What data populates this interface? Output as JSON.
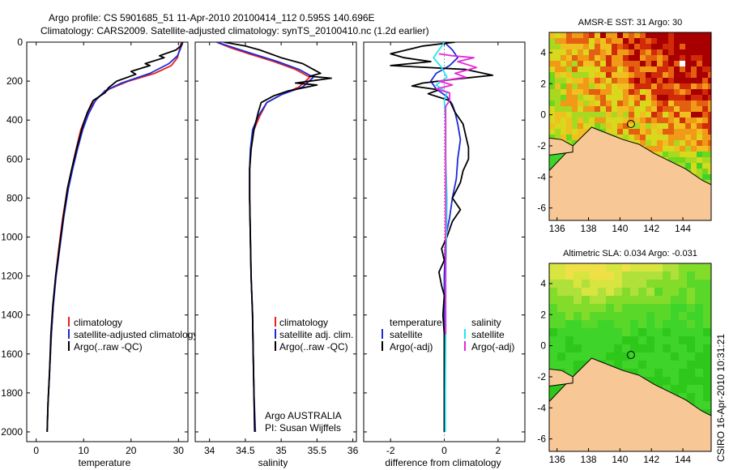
{
  "header": {
    "line1": "Argo profile: CS 5901685_51 11-Apr-2010 20100414_112 0.595S 140.696E",
    "line2": "Climatology: CARS2009. Satellite-adjusted climatology: synTS_20100410.nc (1.2d earlier)"
  },
  "side_stamp": "CSIRO 16-Apr-2010 10:31:21",
  "colors": {
    "climatology": "#e8201c",
    "satellite": "#1c2ad8",
    "argo": "#000000",
    "sat_salinity": "#22e6ee",
    "argo_salinity": "#e62ad8",
    "land": "#f7c896",
    "map_green": "#3fd42a",
    "map_dark_red": "#a80000"
  },
  "chart_data": [
    {
      "type": "line",
      "name": "temperature-profile",
      "xlabel": "temperature",
      "ylim": [
        2050,
        0
      ],
      "xlim": [
        -2,
        32
      ],
      "xticks": [
        0,
        10,
        20,
        30
      ],
      "yticks": [
        0,
        200,
        400,
        600,
        800,
        1000,
        1200,
        1400,
        1600,
        1800,
        2000
      ],
      "legend": [
        "climatology",
        "satellite-adjusted climatology",
        "Argo(..raw -QC)"
      ],
      "series": [
        {
          "name": "climatology",
          "color": "#e8201c",
          "points": [
            [
              30.6,
              0
            ],
            [
              30.2,
              40
            ],
            [
              29.8,
              80
            ],
            [
              28.5,
              120
            ],
            [
              25,
              160
            ],
            [
              19.5,
              200
            ],
            [
              15.5,
              240
            ],
            [
              13.2,
              280
            ],
            [
              11.8,
              320
            ],
            [
              10.5,
              380
            ],
            [
              9.4,
              450
            ],
            [
              8.4,
              550
            ],
            [
              7.5,
              650
            ],
            [
              6.6,
              750
            ],
            [
              5.6,
              900
            ],
            [
              4.8,
              1050
            ],
            [
              4.1,
              1200
            ],
            [
              3.6,
              1350
            ],
            [
              3.2,
              1500
            ],
            [
              2.8,
              1700
            ],
            [
              2.5,
              1850
            ],
            [
              2.3,
              2000
            ]
          ]
        },
        {
          "name": "satellite",
          "color": "#1c2ad8",
          "points": [
            [
              30.8,
              0
            ],
            [
              30.5,
              30
            ],
            [
              29.8,
              70
            ],
            [
              28,
              110
            ],
            [
              24,
              160
            ],
            [
              18,
              210
            ],
            [
              14.5,
              250
            ],
            [
              12.5,
              300
            ],
            [
              11,
              370
            ],
            [
              9.8,
              450
            ],
            [
              8.7,
              550
            ],
            [
              7.7,
              650
            ],
            [
              6.8,
              750
            ],
            [
              5.8,
              900
            ],
            [
              5,
              1050
            ],
            [
              4.2,
              1200
            ],
            [
              3.6,
              1350
            ],
            [
              3.2,
              1500
            ],
            [
              2.8,
              1700
            ],
            [
              2.5,
              1850
            ],
            [
              2.3,
              2000
            ]
          ]
        },
        {
          "name": "argo",
          "color": "#000000",
          "points": [
            [
              30.9,
              0
            ],
            [
              30.7,
              15
            ],
            [
              29.5,
              40
            ],
            [
              26,
              70
            ],
            [
              27,
              80
            ],
            [
              23,
              110
            ],
            [
              24,
              120
            ],
            [
              20,
              150
            ],
            [
              21,
              165
            ],
            [
              17,
              200
            ],
            [
              15.2,
              235
            ],
            [
              14.5,
              260
            ],
            [
              12,
              300
            ],
            [
              10.8,
              360
            ],
            [
              9.8,
              430
            ],
            [
              8.6,
              540
            ],
            [
              7.5,
              650
            ],
            [
              6.6,
              750
            ],
            [
              5.7,
              900
            ],
            [
              4.9,
              1050
            ],
            [
              4.1,
              1200
            ],
            [
              3.5,
              1350
            ],
            [
              3.1,
              1500
            ],
            [
              2.8,
              1700
            ],
            [
              2.5,
              1850
            ],
            [
              2.3,
              2000
            ]
          ]
        }
      ]
    },
    {
      "type": "line",
      "name": "salinity-profile",
      "xlabel": "salinity",
      "ylim": [
        2050,
        0
      ],
      "xlim": [
        33.8,
        36.05
      ],
      "xticks": [
        34,
        34.5,
        35,
        35.5,
        36
      ],
      "legend": [
        "climatology",
        "satellite adj. clim.",
        "Argo(..raw -QC)"
      ],
      "annotation": [
        "Argo AUSTRALIA",
        "PI: Susan Wijffels"
      ],
      "series": [
        {
          "name": "climatology",
          "color": "#e8201c",
          "points": [
            [
              34.1,
              0
            ],
            [
              34.3,
              30
            ],
            [
              34.55,
              60
            ],
            [
              34.9,
              100
            ],
            [
              35.2,
              140
            ],
            [
              35.4,
              180
            ],
            [
              35.25,
              230
            ],
            [
              35.0,
              270
            ],
            [
              34.8,
              310
            ],
            [
              34.7,
              380
            ],
            [
              34.62,
              450
            ],
            [
              34.58,
              550
            ],
            [
              34.56,
              650
            ],
            [
              34.56,
              800
            ],
            [
              34.57,
              1000
            ],
            [
              34.58,
              1200
            ],
            [
              34.6,
              1400
            ],
            [
              34.61,
              1600
            ],
            [
              34.62,
              1800
            ],
            [
              34.63,
              2000
            ]
          ]
        },
        {
          "name": "satellite",
          "color": "#1c2ad8",
          "points": [
            [
              34.1,
              0
            ],
            [
              34.35,
              30
            ],
            [
              34.6,
              60
            ],
            [
              34.95,
              100
            ],
            [
              35.25,
              140
            ],
            [
              35.45,
              180
            ],
            [
              35.3,
              230
            ],
            [
              35.0,
              270
            ],
            [
              34.8,
              310
            ],
            [
              34.68,
              380
            ],
            [
              34.6,
              450
            ],
            [
              34.57,
              550
            ],
            [
              34.56,
              650
            ],
            [
              34.56,
              800
            ],
            [
              34.57,
              1000
            ],
            [
              34.58,
              1200
            ],
            [
              34.6,
              1400
            ],
            [
              34.61,
              1600
            ],
            [
              34.62,
              1800
            ],
            [
              34.64,
              2000
            ]
          ]
        },
        {
          "name": "argo",
          "color": "#000000",
          "points": [
            [
              34.2,
              0
            ],
            [
              34.5,
              20
            ],
            [
              34.7,
              40
            ],
            [
              35.0,
              80
            ],
            [
              35.3,
              110
            ],
            [
              35.45,
              140
            ],
            [
              35.55,
              160
            ],
            [
              35.4,
              175
            ],
            [
              35.7,
              185
            ],
            [
              35.2,
              210
            ],
            [
              35.5,
              220
            ],
            [
              35.1,
              250
            ],
            [
              34.9,
              275
            ],
            [
              34.72,
              310
            ],
            [
              34.68,
              360
            ],
            [
              34.62,
              450
            ],
            [
              34.58,
              550
            ],
            [
              34.56,
              650
            ],
            [
              34.56,
              800
            ],
            [
              34.57,
              1000
            ],
            [
              34.58,
              1200
            ],
            [
              34.6,
              1400
            ],
            [
              34.61,
              1600
            ],
            [
              34.62,
              1800
            ],
            [
              34.63,
              2000
            ]
          ]
        }
      ]
    },
    {
      "type": "line",
      "name": "difference-profile",
      "xlabel": "difference from climatology",
      "ylim": [
        2050,
        0
      ],
      "xlim": [
        -3,
        3
      ],
      "xticks": [
        -2,
        0,
        2
      ],
      "legend_left_title": "temperature",
      "legend_left": [
        "satellite",
        "Argo(-adj)"
      ],
      "legend_right_title": "salinity",
      "legend_right": [
        "satellite",
        "Argo(-adj)"
      ],
      "series": [
        {
          "name": "temp-satellite",
          "color": "#1c2ad8",
          "points": [
            [
              0,
              0
            ],
            [
              0.3,
              40
            ],
            [
              0.5,
              80
            ],
            [
              0.2,
              120
            ],
            [
              -0.3,
              160
            ],
            [
              -0.5,
              200
            ],
            [
              -0.3,
              240
            ],
            [
              0.1,
              280
            ],
            [
              0.3,
              320
            ],
            [
              0.4,
              360
            ],
            [
              0.5,
              420
            ],
            [
              0.6,
              500
            ],
            [
              0.5,
              600
            ],
            [
              0.45,
              700
            ],
            [
              0.3,
              800
            ],
            [
              0.2,
              900
            ],
            [
              0.05,
              1000
            ],
            [
              0,
              1200
            ],
            [
              0,
              1500
            ],
            [
              0,
              2000
            ]
          ]
        },
        {
          "name": "temp-argo",
          "color": "#000000",
          "points": [
            [
              0.4,
              0
            ],
            [
              -0.8,
              20
            ],
            [
              -2.0,
              60
            ],
            [
              -1.5,
              80
            ],
            [
              -0.5,
              100
            ],
            [
              -2.0,
              120
            ],
            [
              0.8,
              140
            ],
            [
              1.8,
              170
            ],
            [
              0.4,
              190
            ],
            [
              -0.8,
              210
            ],
            [
              -1.2,
              225
            ],
            [
              -0.2,
              245
            ],
            [
              -0.6,
              265
            ],
            [
              0.2,
              300
            ],
            [
              0.4,
              360
            ],
            [
              0.7,
              420
            ],
            [
              0.8,
              480
            ],
            [
              0.9,
              540
            ],
            [
              0.9,
              600
            ],
            [
              0.7,
              660
            ],
            [
              0.6,
              720
            ],
            [
              0.3,
              800
            ],
            [
              0.6,
              860
            ],
            [
              0.3,
              920
            ],
            [
              0.1,
              1000
            ],
            [
              -0.1,
              1060
            ],
            [
              0,
              1120
            ],
            [
              -0.2,
              1180
            ],
            [
              -0.1,
              1250
            ],
            [
              0,
              1300
            ],
            [
              -0.05,
              1400
            ],
            [
              0,
              1500
            ],
            [
              0,
              2000
            ]
          ]
        },
        {
          "name": "sal-satellite",
          "color": "#22e6ee",
          "points": [
            [
              0,
              0
            ],
            [
              -0.2,
              40
            ],
            [
              -0.4,
              80
            ],
            [
              -0.1,
              130
            ],
            [
              0.1,
              180
            ],
            [
              -0.3,
              220
            ],
            [
              0.1,
              260
            ],
            [
              0,
              300
            ],
            [
              0.05,
              400
            ],
            [
              0.05,
              600
            ],
            [
              0.1,
              800
            ],
            [
              0.08,
              1000
            ],
            [
              0.05,
              1200
            ],
            [
              0.05,
              1500
            ],
            [
              0.04,
              1800
            ],
            [
              0.04,
              2000
            ]
          ]
        },
        {
          "name": "sal-argo",
          "color": "#e62ad8",
          "points": [
            [
              -0.2,
              60
            ],
            [
              0.3,
              70
            ],
            [
              1.1,
              80
            ],
            [
              0.5,
              100
            ],
            [
              1.2,
              130
            ],
            [
              0.4,
              160
            ],
            [
              0.8,
              180
            ],
            [
              -0.2,
              200
            ],
            [
              0.3,
              220
            ],
            [
              -0.3,
              240
            ],
            [
              0.2,
              260
            ],
            [
              0.2,
              300
            ],
            [
              0.05,
              330
            ],
            [
              0.05,
              1500
            ]
          ]
        }
      ]
    },
    {
      "type": "heatmap",
      "name": "sst-map",
      "title": "AMSR-E SST: 31 Argo: 30",
      "xlim": [
        135.5,
        145.8
      ],
      "ylim": [
        -6.8,
        5.3
      ],
      "xticks": [
        136,
        138,
        140,
        142,
        144
      ],
      "yticks": [
        4,
        2,
        0,
        -2,
        -4,
        -6
      ],
      "argo_position": [
        140.696,
        -0.595
      ]
    },
    {
      "type": "heatmap",
      "name": "sla-map",
      "title": "Altimetric SLA: 0.034 Argo: -0.031",
      "xlim": [
        135.5,
        145.8
      ],
      "ylim": [
        -6.8,
        5.3
      ],
      "xticks": [
        136,
        138,
        140,
        142,
        144
      ],
      "yticks": [
        4,
        2,
        0,
        -2,
        -4,
        -6
      ],
      "argo_position": [
        140.696,
        -0.595
      ]
    }
  ]
}
